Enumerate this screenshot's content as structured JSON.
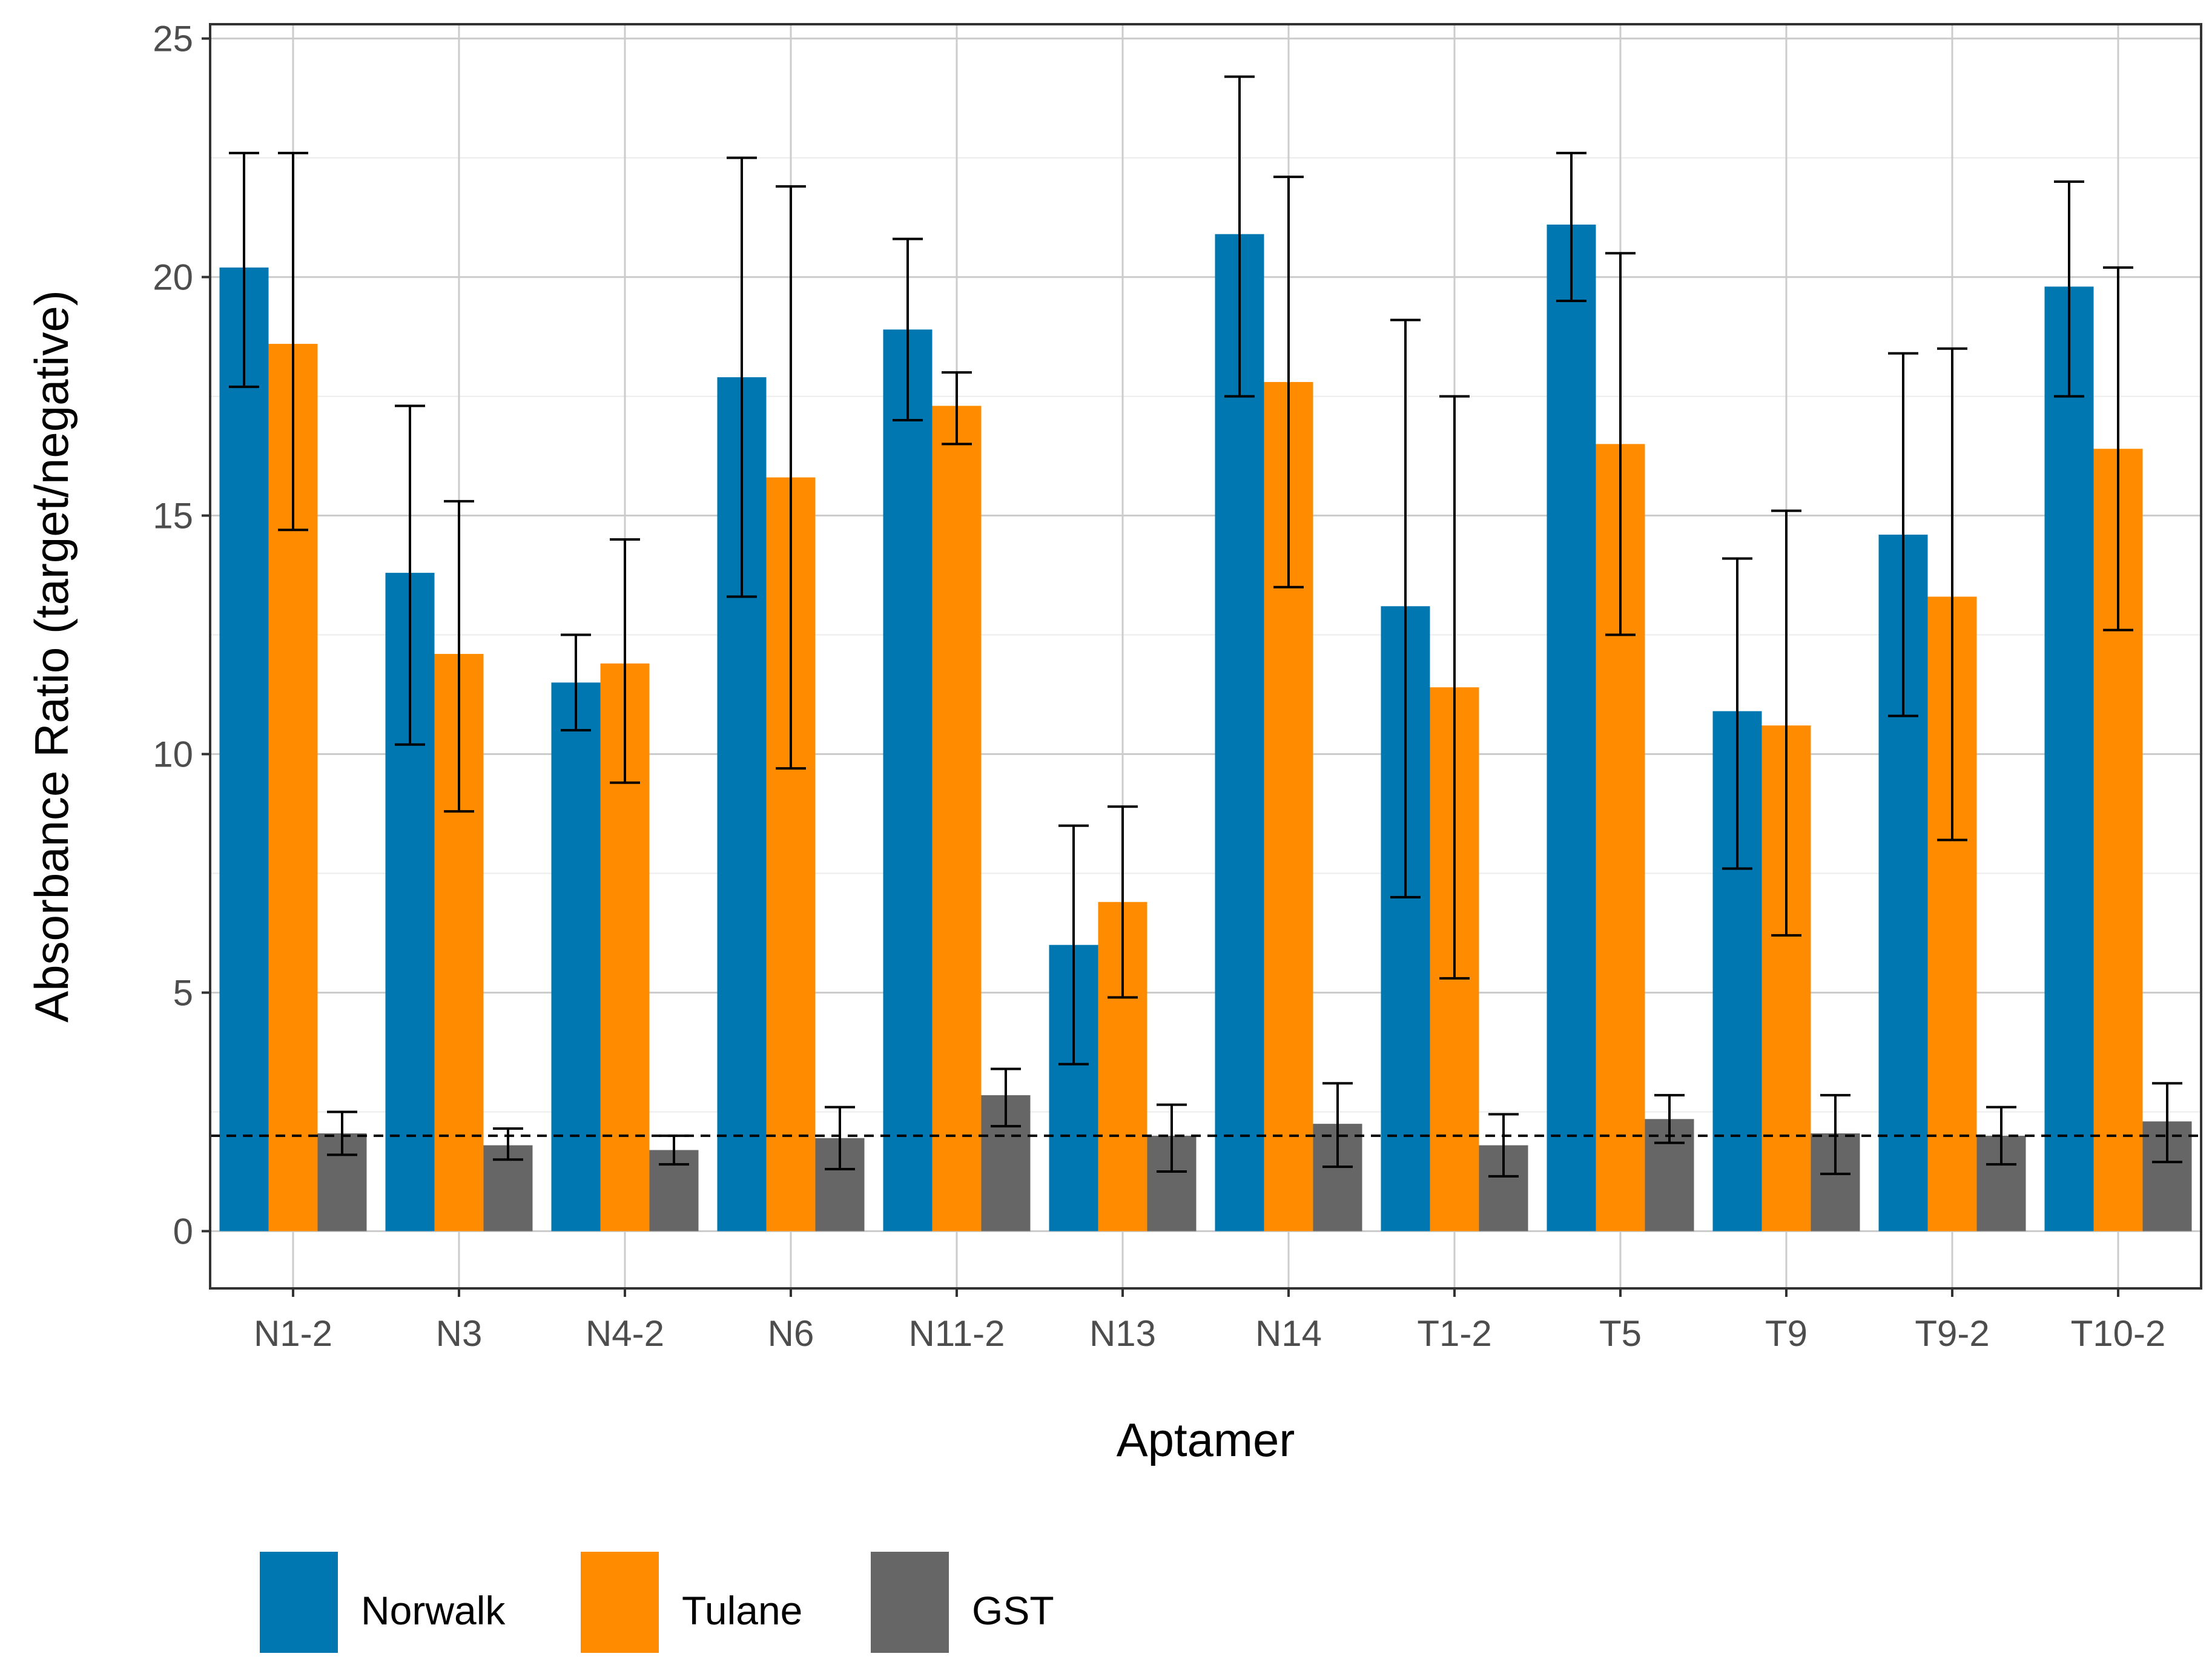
{
  "chart_data": {
    "type": "bar",
    "title": "",
    "xlabel": "Aptamer",
    "ylabel": "Absorbance Ratio (target/negative)",
    "ylim": [
      -1.2,
      25.3
    ],
    "yticks": [
      "0",
      "5",
      "10",
      "15",
      "20",
      "25"
    ],
    "grid": true,
    "legend_position": "bottom-left",
    "reference_line": {
      "y": 2,
      "style": "dashed"
    },
    "categories": [
      "N1-2",
      "N3",
      "N4-2",
      "N6",
      "N11-2",
      "N13",
      "N14",
      "T1-2",
      "T5",
      "T9",
      "T9-2",
      "T10-2"
    ],
    "series": [
      {
        "name": "Norwalk",
        "color": "#0077B0",
        "values": [
          20.2,
          13.8,
          11.5,
          17.9,
          18.9,
          6.0,
          20.9,
          13.1,
          21.1,
          10.9,
          14.6,
          19.8
        ],
        "err_low": [
          17.7,
          10.2,
          10.5,
          13.3,
          17.0,
          3.5,
          17.5,
          7.0,
          19.5,
          7.6,
          10.8,
          17.5
        ],
        "err_high": [
          22.6,
          17.3,
          12.5,
          22.5,
          20.8,
          8.5,
          24.2,
          19.1,
          22.6,
          14.1,
          18.4,
          22.0
        ]
      },
      {
        "name": "Tulane",
        "color": "#FF8C00",
        "values": [
          18.6,
          12.1,
          11.9,
          15.8,
          17.3,
          6.9,
          17.8,
          11.4,
          16.5,
          10.6,
          13.3,
          16.4
        ],
        "err_low": [
          14.7,
          8.8,
          9.4,
          9.7,
          16.5,
          4.9,
          13.5,
          5.3,
          12.5,
          6.2,
          8.2,
          12.6
        ],
        "err_high": [
          22.6,
          15.3,
          14.5,
          21.9,
          18.0,
          8.9,
          22.1,
          17.5,
          20.5,
          15.1,
          18.5,
          20.2
        ]
      },
      {
        "name": "GST",
        "color": "#666666",
        "values": [
          2.05,
          1.8,
          1.7,
          1.95,
          2.85,
          2.0,
          2.25,
          1.8,
          2.35,
          2.05,
          2.0,
          2.3
        ],
        "err_low": [
          1.6,
          1.5,
          1.4,
          1.3,
          2.2,
          1.25,
          1.35,
          1.15,
          1.85,
          1.2,
          1.4,
          1.45
        ],
        "err_high": [
          2.5,
          2.15,
          2.0,
          2.6,
          3.4,
          2.65,
          3.1,
          2.45,
          2.85,
          2.85,
          2.6,
          3.1
        ]
      }
    ]
  }
}
